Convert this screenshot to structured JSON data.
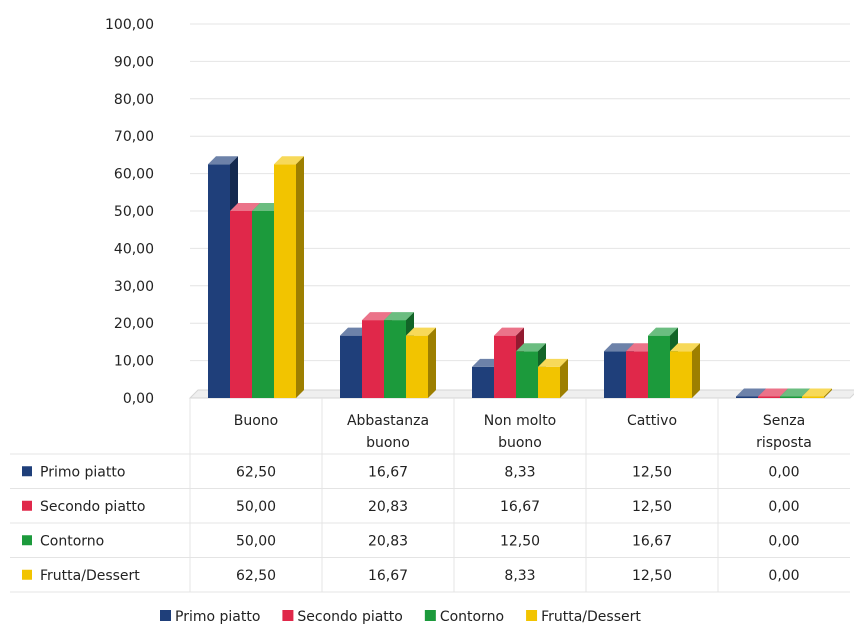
{
  "chart_data": {
    "type": "bar",
    "categories": [
      [
        "Buono"
      ],
      [
        "Abbastanza",
        "buono"
      ],
      [
        "Non molto",
        "buono"
      ],
      [
        "Cattivo"
      ],
      [
        "Senza",
        "risposta"
      ]
    ],
    "series": [
      {
        "name": "Primo piatto",
        "color": "#1f3f7a",
        "values": [
          62.5,
          16.67,
          8.33,
          12.5,
          0.0
        ],
        "labels": [
          "62,50",
          "16,67",
          "8,33",
          "12,50",
          "0,00"
        ]
      },
      {
        "name": "Secondo piatto",
        "color": "#e0284a",
        "values": [
          50.0,
          20.83,
          16.67,
          12.5,
          0.0
        ],
        "labels": [
          "50,00",
          "20,83",
          "16,67",
          "12,50",
          "0,00"
        ]
      },
      {
        "name": "Contorno",
        "color": "#1c9a3c",
        "values": [
          50.0,
          20.83,
          12.5,
          16.67,
          0.0
        ],
        "labels": [
          "50,00",
          "20,83",
          "12,50",
          "16,67",
          "0,00"
        ]
      },
      {
        "name": "Frutta/Dessert",
        "color": "#f2c400",
        "values": [
          62.5,
          16.67,
          8.33,
          12.5,
          0.0
        ],
        "labels": [
          "62,50",
          "16,67",
          "8,33",
          "12,50",
          "0,00"
        ]
      }
    ],
    "ylim": [
      0,
      100
    ],
    "yticks": [
      "0,00",
      "10,00",
      "20,00",
      "30,00",
      "40,00",
      "50,00",
      "60,00",
      "70,00",
      "80,00",
      "90,00",
      "100,00"
    ],
    "grid": true,
    "data_table": true,
    "legend": "bottom"
  }
}
